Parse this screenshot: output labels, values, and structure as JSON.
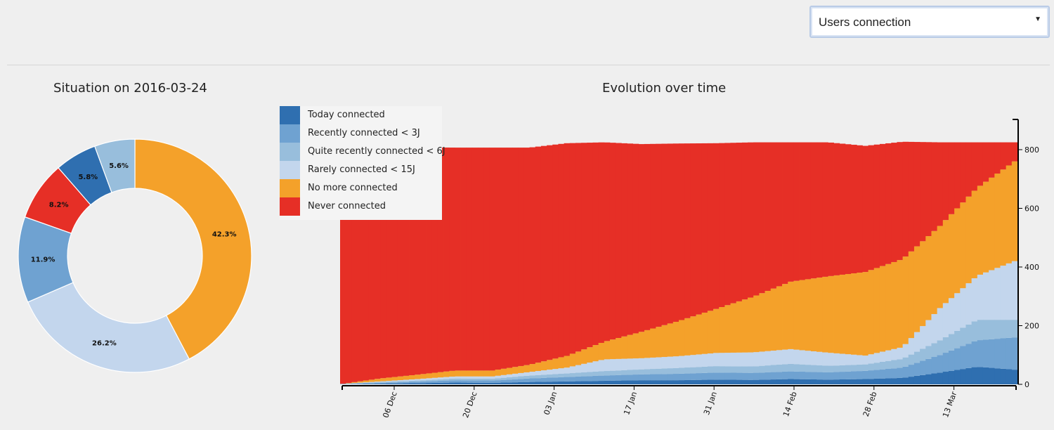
{
  "selector": {
    "value": "Users connection",
    "caret_icon": "caret-down-icon"
  },
  "pie": {
    "title": "Situation on 2016-03-24",
    "slices": [
      {
        "name": "No more connected",
        "pct": 42.3,
        "label": "42.3%",
        "color": "#f4a12a"
      },
      {
        "name": "Rarely connected < 15J",
        "pct": 26.2,
        "label": "26.2%",
        "color": "#c3d6ed"
      },
      {
        "name": "Recently connected < 3J",
        "pct": 11.9,
        "label": "11.9%",
        "color": "#6fa2d1"
      },
      {
        "name": "Never connected",
        "pct": 8.2,
        "label": "8.2%",
        "color": "#e62f26"
      },
      {
        "name": "Today connected",
        "pct": 5.8,
        "label": "5.8%",
        "color": "#2f6fb0"
      },
      {
        "name": "Quite recently connected < 6J",
        "pct": 5.6,
        "label": "5.6%",
        "color": "#98bedc"
      }
    ]
  },
  "evolution": {
    "title": "Evolution over time",
    "legend": [
      {
        "label": "Today connected",
        "color": "#2f6fb0"
      },
      {
        "label": "Recently connected < 3J",
        "color": "#6fa2d1"
      },
      {
        "label": "Quite recently connected < 6J",
        "color": "#98bedc"
      },
      {
        "label": "Rarely connected < 15J",
        "color": "#c3d6ed"
      },
      {
        "label": "No more connected",
        "color": "#f4a12a"
      },
      {
        "label": "Never connected",
        "color": "#e62f26"
      }
    ]
  },
  "chart_data": [
    {
      "type": "pie",
      "title": "Situation on 2016-03-24",
      "categories": [
        "No more connected",
        "Rarely connected < 15J",
        "Recently connected < 3J",
        "Never connected",
        "Today connected",
        "Quite recently connected < 6J"
      ],
      "values": [
        42.3,
        26.2,
        11.9,
        8.2,
        5.8,
        5.6
      ]
    },
    {
      "type": "area",
      "title": "Evolution over time",
      "xlabel": "",
      "ylabel": "",
      "x": [
        "2016-11-29",
        "2016-12-06",
        "2016-12-13",
        "2016-12-20",
        "2016-12-27",
        "2017-01-03",
        "2017-01-10",
        "2017-01-17",
        "2017-01-24",
        "2017-01-31",
        "2017-02-07",
        "2017-02-14",
        "2017-02-21",
        "2017-02-28",
        "2017-03-06",
        "2017-03-13",
        "2017-03-17",
        "2017-03-20",
        "2017-03-24"
      ],
      "ylim": [
        0,
        900
      ],
      "yticks": [
        0,
        200,
        400,
        600,
        800
      ],
      "xtick_labels": [
        "06 Dec",
        "20 Dec",
        "03 Jan",
        "17 Jan",
        "31 Jan",
        "14 Feb",
        "28 Feb",
        "13 Mar"
      ],
      "series": [
        {
          "name": "Today connected",
          "values": [
            0,
            2,
            4,
            6,
            5,
            8,
            10,
            12,
            14,
            14,
            16,
            15,
            18,
            16,
            18,
            22,
            40,
            60,
            50
          ]
        },
        {
          "name": "Recently connected < 3J",
          "values": [
            1,
            3,
            5,
            8,
            8,
            12,
            15,
            18,
            20,
            22,
            24,
            24,
            26,
            25,
            28,
            35,
            60,
            90,
            110
          ]
        },
        {
          "name": "Quite recently connected < 6J",
          "values": [
            1,
            3,
            4,
            6,
            6,
            10,
            12,
            15,
            17,
            20,
            22,
            22,
            26,
            22,
            22,
            30,
            50,
            70,
            60
          ]
        },
        {
          "name": "Rarely connected < 15J",
          "values": [
            0,
            2,
            5,
            7,
            8,
            12,
            20,
            40,
            38,
            40,
            45,
            48,
            50,
            45,
            30,
            40,
            110,
            150,
            200
          ]
        },
        {
          "name": "No more connected",
          "values": [
            0,
            10,
            15,
            20,
            20,
            25,
            40,
            60,
            90,
            120,
            150,
            190,
            230,
            260,
            285,
            300,
            280,
            300,
            340
          ]
        },
        {
          "name": "Never connected",
          "values": [
            805,
            790,
            775,
            760,
            760,
            740,
            725,
            680,
            640,
            605,
            565,
            526,
            475,
            457,
            430,
            400,
            285,
            155,
            65
          ]
        }
      ]
    }
  ]
}
